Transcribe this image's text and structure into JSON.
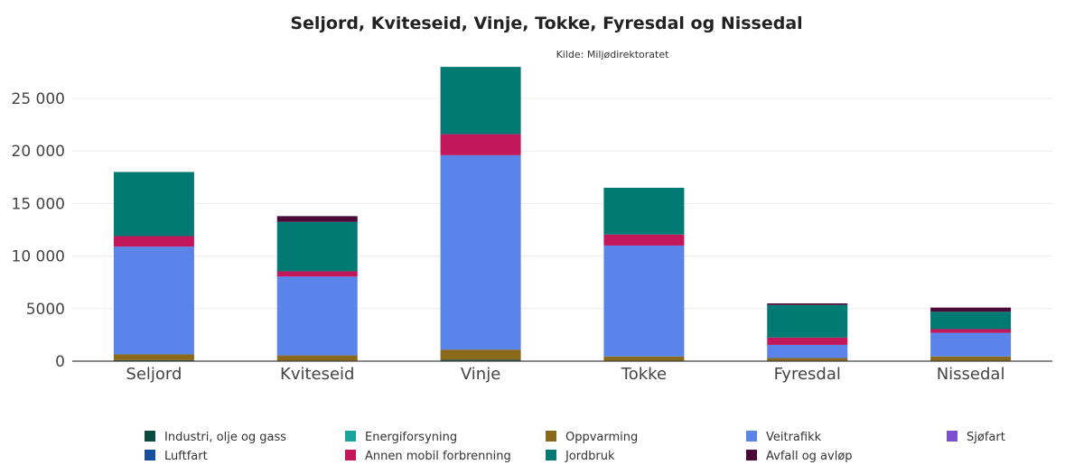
{
  "chart_data": {
    "type": "bar",
    "stacked": true,
    "title": "Seljord, Kviteseid, Vinje, Tokke, Fyresdal og Nissedal",
    "subtitle": "Kilde: Miljødirektoratet",
    "xlabel": "",
    "ylabel": "",
    "ylim": [
      0,
      28000
    ],
    "yticks": [
      0,
      5000,
      10000,
      15000,
      20000,
      25000
    ],
    "ytick_labels": [
      "0",
      "5000",
      "10 000",
      "15 000",
      "20 000",
      "25 000"
    ],
    "grid": true,
    "legend_position": "bottom",
    "categories": [
      "Seljord",
      "Kviteseid",
      "Vinje",
      "Tokke",
      "Fyresdal",
      "Nissedal"
    ],
    "series": [
      {
        "name": "Industri, olje og gass",
        "color": "#0b4a3f",
        "values": [
          100,
          0,
          150,
          0,
          0,
          0
        ]
      },
      {
        "name": "Energiforsyning",
        "color": "#1aa3a0",
        "values": [
          0,
          0,
          0,
          0,
          0,
          0
        ]
      },
      {
        "name": "Oppvarming",
        "color": "#8a6a1a",
        "values": [
          550,
          550,
          950,
          450,
          300,
          450
        ]
      },
      {
        "name": "Veitrafikk",
        "color": "#5b84eb",
        "values": [
          10250,
          7500,
          18500,
          10550,
          1250,
          2250
        ]
      },
      {
        "name": "Sjøfart",
        "color": "#7b4fd0",
        "values": [
          0,
          0,
          0,
          0,
          0,
          0
        ]
      },
      {
        "name": "Luftfart",
        "color": "#174f9c",
        "values": [
          0,
          0,
          0,
          0,
          0,
          0
        ]
      },
      {
        "name": "Annen mobil forbrenning",
        "color": "#c2185b",
        "values": [
          1000,
          500,
          2000,
          1050,
          700,
          350
        ]
      },
      {
        "name": "Jordbruk",
        "color": "#007a72",
        "values": [
          6100,
          4700,
          6400,
          4450,
          3100,
          1650
        ]
      },
      {
        "name": "Avfall og avløp",
        "color": "#4a0a3a",
        "values": [
          0,
          550,
          0,
          0,
          150,
          400
        ]
      }
    ]
  }
}
